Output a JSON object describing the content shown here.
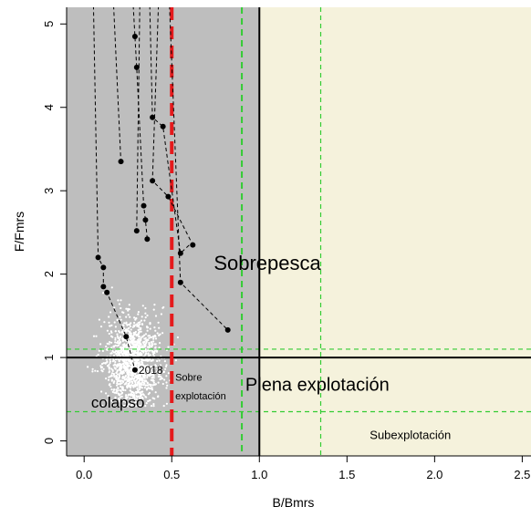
{
  "chart_data": {
    "type": "scatter",
    "title": "",
    "xlabel": "B/Bmrs",
    "ylabel": "F/Fmrs",
    "xlim": [
      -0.1,
      2.55
    ],
    "ylim": [
      -0.18,
      5.2
    ],
    "x_ticks": [
      0,
      0.5,
      1,
      1.5,
      2,
      2.5
    ],
    "x_tick_labels": [
      "0.0",
      "0.5",
      "1.0",
      "1.5",
      "2.0",
      "2.5"
    ],
    "y_ticks": [
      0,
      1,
      2,
      3,
      4,
      5
    ],
    "y_tick_labels": [
      "0",
      "1",
      "2",
      "3",
      "4",
      "5"
    ],
    "grid": false,
    "colors": {
      "overfished_zone": "#bebebe",
      "underexploited_zone": "#f5f2dc",
      "limit_reference_line": "#e41a1c",
      "target_lines": "#33cc33",
      "trajectory": "#000000",
      "uncertainty_cloud": "#ffffff"
    },
    "zones": [
      {
        "name": "colapso",
        "label": "colapso"
      },
      {
        "name": "sobre-explotacion",
        "label_lines": [
          "Sobre",
          "explotación"
        ]
      },
      {
        "name": "sobrepesca",
        "label": "Sobrepesca"
      },
      {
        "name": "plena-explotacion",
        "label": "Plena explotación"
      },
      {
        "name": "subexplotacion",
        "label": "Subexplotación"
      }
    ],
    "reference_lines": [
      {
        "name": "b-limit",
        "orientation": "vertical",
        "value": 0.5,
        "style": "dashed-thick",
        "color": "#e41a1c"
      },
      {
        "name": "b-target",
        "orientation": "vertical",
        "value": 0.9,
        "style": "dashed",
        "color": "#33cc33"
      },
      {
        "name": "b-msy",
        "orientation": "vertical",
        "value": 1.0,
        "style": "solid",
        "color": "#000000"
      },
      {
        "name": "b-upper",
        "orientation": "vertical",
        "value": 1.35,
        "style": "dashed-thin",
        "color": "#33cc33"
      },
      {
        "name": "f-msy",
        "orientation": "horizontal",
        "value": 1.0,
        "style": "solid",
        "color": "#000000"
      },
      {
        "name": "f-upper",
        "orientation": "horizontal",
        "value": 1.1,
        "style": "dashed-thin",
        "color": "#33cc33"
      },
      {
        "name": "f-lower",
        "orientation": "horizontal",
        "value": 0.35,
        "style": "dashed-thin",
        "color": "#33cc33"
      }
    ],
    "series": [
      {
        "x": [
          0.05,
          0.08,
          0.11,
          0.11,
          0.13,
          0.24,
          0.29
        ],
        "y": [
          5.6,
          2.2,
          2.08,
          1.85,
          1.78,
          1.25,
          0.85
        ],
        "points": [
          {
            "x": 0.08,
            "y": 2.2
          },
          {
            "x": 0.11,
            "y": 2.08
          },
          {
            "x": 0.11,
            "y": 1.85
          },
          {
            "x": 0.13,
            "y": 1.78
          },
          {
            "x": 0.24,
            "y": 1.25
          },
          {
            "x": 0.29,
            "y": 0.85,
            "label": "2018"
          }
        ]
      },
      {
        "x": [
          0.16,
          0.21
        ],
        "y": [
          5.6,
          3.35
        ],
        "points": [
          {
            "x": 0.21,
            "y": 3.35
          }
        ]
      },
      {
        "x": [
          0.27,
          0.29,
          0.3,
          0.34,
          0.35,
          0.36
        ],
        "y": [
          5.6,
          4.85,
          4.48,
          2.82,
          2.65,
          2.42
        ],
        "points": [
          {
            "x": 0.29,
            "y": 4.85
          },
          {
            "x": 0.3,
            "y": 4.48
          },
          {
            "x": 0.34,
            "y": 2.82
          },
          {
            "x": 0.35,
            "y": 2.65
          },
          {
            "x": 0.36,
            "y": 2.42
          }
        ]
      },
      {
        "x": [
          0.32,
          0.3
        ],
        "y": [
          5.6,
          2.52
        ],
        "points": [
          {
            "x": 0.3,
            "y": 2.52
          }
        ]
      },
      {
        "x": [
          0.37,
          0.39,
          0.45,
          0.55,
          0.6
        ],
        "y": [
          5.6,
          3.88,
          3.77,
          2.25,
          2.35
        ],
        "points": [
          {
            "x": 0.39,
            "y": 3.88
          },
          {
            "x": 0.45,
            "y": 3.77
          },
          {
            "x": 0.55,
            "y": 2.25
          }
        ]
      },
      {
        "x": [
          0.43,
          0.39,
          0.48,
          0.62
        ],
        "y": [
          5.6,
          3.12,
          2.93,
          2.35
        ],
        "points": [
          {
            "x": 0.39,
            "y": 3.12
          },
          {
            "x": 0.48,
            "y": 2.93
          },
          {
            "x": 0.62,
            "y": 2.35
          }
        ]
      },
      {
        "x": [
          0.48,
          0.55,
          0.82
        ],
        "y": [
          5.6,
          1.9,
          1.33
        ],
        "points": [
          {
            "x": 0.55,
            "y": 1.9
          },
          {
            "x": 0.82,
            "y": 1.33
          }
        ]
      }
    ],
    "uncertainty_cloud": {
      "center_x": 0.28,
      "center_y": 0.95,
      "spread_x": 0.08,
      "spread_y": 0.26,
      "n": 1400
    }
  }
}
